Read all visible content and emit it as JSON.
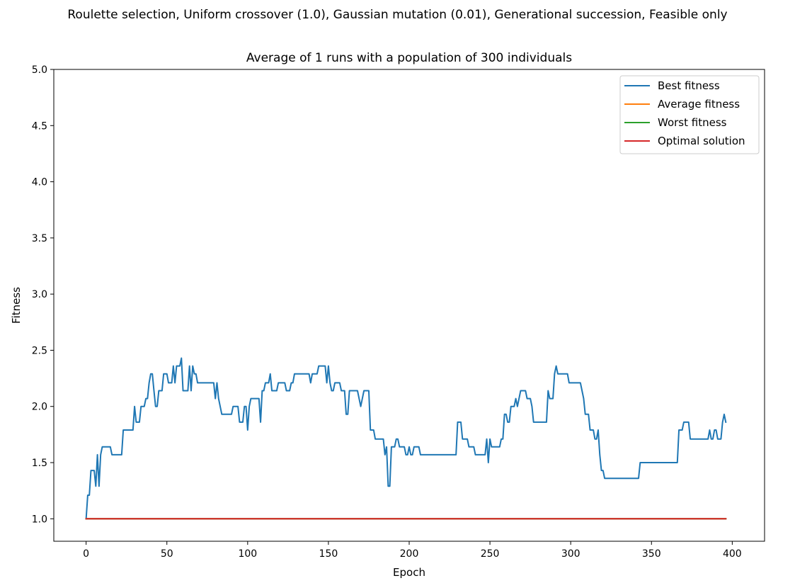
{
  "figure": {
    "suptitle": "Roulette selection, Uniform crossover (1.0), Gaussian mutation (0.01), Generational succession, Feasible only"
  },
  "chart_data": {
    "type": "line",
    "title": "Average of 1 runs with a population of 300 individuals",
    "xlabel": "Epoch",
    "ylabel": "Fitness",
    "xlim": [
      -20,
      420
    ],
    "ylim": [
      0.8,
      5.0
    ],
    "xticks": [
      0,
      50,
      100,
      150,
      200,
      250,
      300,
      350,
      400
    ],
    "xtick_labels": [
      "0",
      "50",
      "100",
      "150",
      "200",
      "250",
      "300",
      "350",
      "400"
    ],
    "yticks": [
      1.0,
      1.5,
      2.0,
      2.5,
      3.0,
      3.5,
      4.0,
      4.5,
      5.0
    ],
    "ytick_labels": [
      "1.0",
      "1.5",
      "2.0",
      "2.5",
      "3.0",
      "3.5",
      "4.0",
      "4.5",
      "5.0"
    ],
    "grid": false,
    "legend_position": "top-right",
    "series": [
      {
        "name": "Best fitness",
        "color": "#1f77b4",
        "points": [
          [
            0,
            1.0
          ],
          [
            1,
            1.21
          ],
          [
            2,
            1.21
          ],
          [
            3,
            1.43
          ],
          [
            4,
            1.43
          ],
          [
            5,
            1.43
          ],
          [
            6,
            1.29
          ],
          [
            7,
            1.57
          ],
          [
            8,
            1.29
          ],
          [
            9,
            1.57
          ],
          [
            10,
            1.64
          ],
          [
            12,
            1.64
          ],
          [
            15,
            1.64
          ],
          [
            16,
            1.57
          ],
          [
            20,
            1.57
          ],
          [
            22,
            1.57
          ],
          [
            23,
            1.79
          ],
          [
            25,
            1.79
          ],
          [
            28,
            1.79
          ],
          [
            29,
            1.79
          ],
          [
            30,
            2.0
          ],
          [
            31,
            1.86
          ],
          [
            33,
            1.86
          ],
          [
            34,
            2.0
          ],
          [
            36,
            2.0
          ],
          [
            37,
            2.07
          ],
          [
            38,
            2.07
          ],
          [
            39,
            2.21
          ],
          [
            40,
            2.29
          ],
          [
            41,
            2.29
          ],
          [
            42,
            2.14
          ],
          [
            43,
            2.0
          ],
          [
            44,
            2.0
          ],
          [
            45,
            2.14
          ],
          [
            47,
            2.14
          ],
          [
            48,
            2.29
          ],
          [
            50,
            2.29
          ],
          [
            51,
            2.21
          ],
          [
            53,
            2.21
          ],
          [
            54,
            2.36
          ],
          [
            55,
            2.21
          ],
          [
            56,
            2.36
          ],
          [
            58,
            2.36
          ],
          [
            59,
            2.43
          ],
          [
            60,
            2.14
          ],
          [
            62,
            2.14
          ],
          [
            63,
            2.14
          ],
          [
            64,
            2.36
          ],
          [
            65,
            2.14
          ],
          [
            66,
            2.36
          ],
          [
            67,
            2.29
          ],
          [
            68,
            2.29
          ],
          [
            69,
            2.21
          ],
          [
            72,
            2.21
          ],
          [
            75,
            2.21
          ],
          [
            78,
            2.21
          ],
          [
            79,
            2.21
          ],
          [
            80,
            2.07
          ],
          [
            81,
            2.21
          ],
          [
            82,
            2.07
          ],
          [
            84,
            1.93
          ],
          [
            86,
            1.93
          ],
          [
            90,
            1.93
          ],
          [
            91,
            2.0
          ],
          [
            94,
            2.0
          ],
          [
            95,
            1.86
          ],
          [
            97,
            1.86
          ],
          [
            98,
            2.0
          ],
          [
            99,
            2.0
          ],
          [
            100,
            1.79
          ],
          [
            101,
            2.0
          ],
          [
            102,
            2.07
          ],
          [
            104,
            2.07
          ],
          [
            107,
            2.07
          ],
          [
            108,
            1.86
          ],
          [
            109,
            2.14
          ],
          [
            110,
            2.14
          ],
          [
            111,
            2.21
          ],
          [
            113,
            2.21
          ],
          [
            114,
            2.29
          ],
          [
            115,
            2.14
          ],
          [
            118,
            2.14
          ],
          [
            119,
            2.21
          ],
          [
            121,
            2.21
          ],
          [
            123,
            2.21
          ],
          [
            124,
            2.14
          ],
          [
            126,
            2.14
          ],
          [
            127,
            2.21
          ],
          [
            128,
            2.21
          ],
          [
            129,
            2.29
          ],
          [
            132,
            2.29
          ],
          [
            135,
            2.29
          ],
          [
            138,
            2.29
          ],
          [
            139,
            2.21
          ],
          [
            140,
            2.29
          ],
          [
            141,
            2.29
          ],
          [
            143,
            2.29
          ],
          [
            144,
            2.36
          ],
          [
            146,
            2.36
          ],
          [
            148,
            2.36
          ],
          [
            149,
            2.21
          ],
          [
            150,
            2.36
          ],
          [
            151,
            2.21
          ],
          [
            152,
            2.14
          ],
          [
            153,
            2.14
          ],
          [
            154,
            2.21
          ],
          [
            157,
            2.21
          ],
          [
            158,
            2.14
          ],
          [
            160,
            2.14
          ],
          [
            161,
            1.93
          ],
          [
            162,
            1.93
          ],
          [
            163,
            2.14
          ],
          [
            166,
            2.14
          ],
          [
            168,
            2.14
          ],
          [
            169,
            2.07
          ],
          [
            170,
            2.0
          ],
          [
            171,
            2.07
          ],
          [
            172,
            2.14
          ],
          [
            174,
            2.14
          ],
          [
            175,
            2.14
          ],
          [
            176,
            1.79
          ],
          [
            178,
            1.79
          ],
          [
            179,
            1.71
          ],
          [
            182,
            1.71
          ],
          [
            184,
            1.71
          ],
          [
            185,
            1.57
          ],
          [
            186,
            1.64
          ],
          [
            187,
            1.29
          ],
          [
            188,
            1.29
          ],
          [
            189,
            1.64
          ],
          [
            190,
            1.64
          ],
          [
            191,
            1.64
          ],
          [
            192,
            1.71
          ],
          [
            193,
            1.71
          ],
          [
            194,
            1.64
          ],
          [
            197,
            1.64
          ],
          [
            198,
            1.57
          ],
          [
            199,
            1.57
          ],
          [
            200,
            1.64
          ],
          [
            201,
            1.57
          ],
          [
            202,
            1.57
          ],
          [
            203,
            1.64
          ],
          [
            206,
            1.64
          ],
          [
            207,
            1.57
          ],
          [
            210,
            1.57
          ],
          [
            215,
            1.57
          ],
          [
            220,
            1.57
          ],
          [
            225,
            1.57
          ],
          [
            228,
            1.57
          ],
          [
            229,
            1.57
          ],
          [
            230,
            1.86
          ],
          [
            232,
            1.86
          ],
          [
            233,
            1.71
          ],
          [
            236,
            1.71
          ],
          [
            237,
            1.64
          ],
          [
            240,
            1.64
          ],
          [
            241,
            1.57
          ],
          [
            247,
            1.57
          ],
          [
            248,
            1.71
          ],
          [
            249,
            1.5
          ],
          [
            250,
            1.71
          ],
          [
            251,
            1.64
          ],
          [
            256,
            1.64
          ],
          [
            257,
            1.71
          ],
          [
            258,
            1.71
          ],
          [
            259,
            1.93
          ],
          [
            260,
            1.93
          ],
          [
            261,
            1.86
          ],
          [
            262,
            1.86
          ],
          [
            263,
            2.0
          ],
          [
            265,
            2.0
          ],
          [
            266,
            2.07
          ],
          [
            267,
            2.0
          ],
          [
            268,
            2.07
          ],
          [
            269,
            2.14
          ],
          [
            272,
            2.14
          ],
          [
            273,
            2.07
          ],
          [
            275,
            2.07
          ],
          [
            276,
            2.0
          ],
          [
            277,
            1.86
          ],
          [
            280,
            1.86
          ],
          [
            284,
            1.86
          ],
          [
            285,
            1.86
          ],
          [
            286,
            2.14
          ],
          [
            287,
            2.07
          ],
          [
            289,
            2.07
          ],
          [
            290,
            2.29
          ],
          [
            291,
            2.36
          ],
          [
            292,
            2.29
          ],
          [
            298,
            2.29
          ],
          [
            299,
            2.21
          ],
          [
            305,
            2.21
          ],
          [
            306,
            2.21
          ],
          [
            307,
            2.14
          ],
          [
            308,
            2.07
          ],
          [
            309,
            1.93
          ],
          [
            311,
            1.93
          ],
          [
            312,
            1.79
          ],
          [
            314,
            1.79
          ],
          [
            315,
            1.71
          ],
          [
            316,
            1.71
          ],
          [
            317,
            1.79
          ],
          [
            318,
            1.57
          ],
          [
            319,
            1.43
          ],
          [
            320,
            1.43
          ],
          [
            321,
            1.36
          ],
          [
            325,
            1.36
          ],
          [
            330,
            1.36
          ],
          [
            335,
            1.36
          ],
          [
            340,
            1.36
          ],
          [
            342,
            1.36
          ],
          [
            343,
            1.5
          ],
          [
            345,
            1.5
          ],
          [
            350,
            1.5
          ],
          [
            355,
            1.5
          ],
          [
            360,
            1.5
          ],
          [
            365,
            1.5
          ],
          [
            366,
            1.5
          ],
          [
            367,
            1.79
          ],
          [
            369,
            1.79
          ],
          [
            370,
            1.86
          ],
          [
            373,
            1.86
          ],
          [
            374,
            1.71
          ],
          [
            378,
            1.71
          ],
          [
            383,
            1.71
          ],
          [
            385,
            1.71
          ],
          [
            386,
            1.79
          ],
          [
            387,
            1.71
          ],
          [
            388,
            1.71
          ],
          [
            389,
            1.79
          ],
          [
            390,
            1.79
          ],
          [
            391,
            1.71
          ],
          [
            393,
            1.71
          ],
          [
            394,
            1.86
          ],
          [
            395,
            1.93
          ],
          [
            396,
            1.86
          ]
        ]
      },
      {
        "name": "Average fitness",
        "color": "#ff7f0e",
        "points": [
          [
            0,
            1.0
          ],
          [
            396,
            1.0
          ]
        ]
      },
      {
        "name": "Worst fitness",
        "color": "#2ca02c",
        "points": [
          [
            0,
            1.0
          ],
          [
            396,
            1.0
          ]
        ]
      },
      {
        "name": "Optimal solution",
        "color": "#d62728",
        "points": [
          [
            0,
            1.0
          ],
          [
            396,
            1.0
          ]
        ]
      }
    ]
  }
}
